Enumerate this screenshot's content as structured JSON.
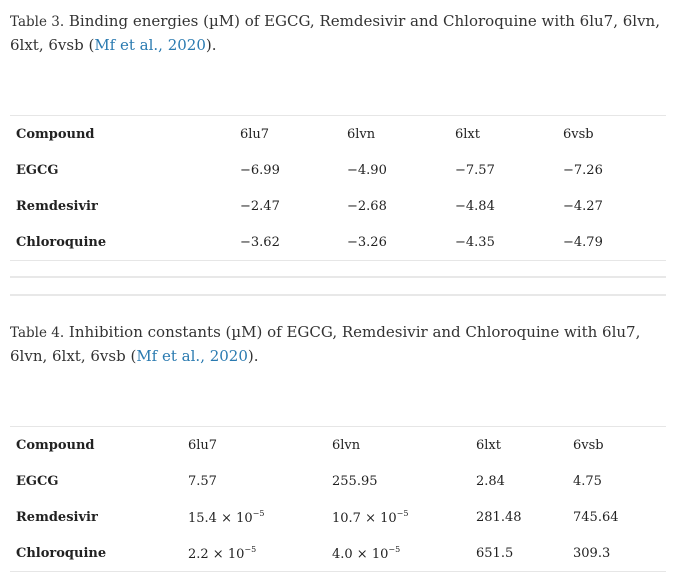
{
  "table3": {
    "caption_label": "Table 3.",
    "caption_text": " Binding energies (µM) of EGCG, Remdesivir and Chloroquine with 6lu7, 6lvn, 6lxt, 6vsb (",
    "caption_link": "Mf et al., 2020",
    "caption_end": ").",
    "headers": [
      "Compound",
      "6lu7",
      "6lvn",
      "6lxt",
      "6vsb"
    ],
    "rows": [
      [
        "EGCG",
        "−6.99",
        "−4.90",
        "−7.57",
        "−7.26"
      ],
      [
        "Remdesivir",
        "−2.47",
        "−2.68",
        "−4.84",
        "−4.27"
      ],
      [
        "Chloroquine",
        "−3.62",
        "−3.26",
        "−4.35",
        "−4.79"
      ]
    ]
  },
  "table4": {
    "caption_label": "Table 4.",
    "caption_text": " Inhibition constants (µM) of EGCG, Remdesivir and Chloroquine with 6lu7, 6lvn, 6lxt, 6vsb (",
    "caption_link": "Mf et al., 2020",
    "caption_end": ").",
    "headers": [
      "Compound",
      "6lu7",
      "6lvn",
      "6lxt",
      "6vsb"
    ],
    "rows": [
      [
        "EGCG",
        "7.57",
        "255.95",
        "2.84",
        "4.75"
      ],
      [
        "Remdesivir",
        "15.4 × 10",
        "10.7 × 10",
        "281.48",
        "745.64"
      ],
      [
        "Chloroquine",
        "2.2 × 10",
        "4.0 × 10",
        "651.5",
        "309.3"
      ]
    ],
    "exponent": "−5"
  }
}
